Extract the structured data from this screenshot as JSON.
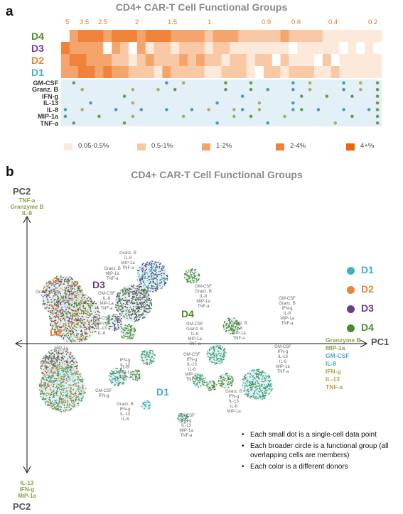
{
  "panel_a": {
    "letter": "a",
    "chart_data": {
      "type": "heatmap",
      "title": "CD4+ CAR-T Cell Functional Groups",
      "top_ticks": [
        "5",
        "3.5",
        "2.5",
        "2",
        "1.5",
        "1",
        "0.9",
        "0.6",
        "0.4",
        "0.2"
      ],
      "donors": [
        "D4",
        "D3",
        "D2",
        "D1"
      ],
      "donor_colors": [
        "#4b8a2e",
        "#7a3d96",
        "#e8853a",
        "#4fa8c9"
      ],
      "n_columns": 38,
      "levels": [
        "0,3,4,4,4,3,4,4,4,3,4,4,4,3,3,3,3,2,3,3,3,2,2,2,2,2,3,2,2,2,2,1,1,1,1,1,1,1",
        "4,3,3,3,3,0,3,2,0,3,1,2,2,1,2,2,2,1,2,2,1,1,1,1,1,1,1,0,1,1,1,1,1,0,1,0,1,0",
        "3,4,4,3,3,3,2,2,1,2,3,2,2,2,3,2,3,2,2,1,2,2,1,2,2,0,2,1,1,1,0,2,0,1,1,1,1,1",
        "3,3,4,4,3,4,3,3,2,2,2,1,3,2,2,2,2,1,1,2,2,2,1,0,2,2,1,2,2,2,1,1,2,1,1,1,1,1"
      ],
      "cytokines": [
        "GM-CSF",
        "Granz. B",
        "IFN-g",
        "IL-13",
        "IL-8",
        "MIP-1a",
        "TNF-a"
      ],
      "cytokine_dots": [
        [
          0,
          1,
          0,
          0,
          0,
          0,
          0,
          0,
          0,
          0,
          0,
          0,
          1,
          0,
          1,
          0,
          0,
          0,
          0,
          1,
          0,
          0,
          1,
          0,
          0,
          0,
          0,
          1,
          0,
          1,
          0,
          0,
          0,
          1,
          0,
          1,
          0,
          1
        ],
        [
          0,
          0,
          1,
          0,
          0,
          0,
          0,
          0,
          1,
          0,
          0,
          1,
          0,
          1,
          0,
          0,
          0,
          0,
          0,
          1,
          0,
          0,
          1,
          0,
          1,
          0,
          0,
          1,
          0,
          1,
          0,
          0,
          0,
          1,
          0,
          1,
          0,
          1
        ],
        [
          0,
          0,
          0,
          0,
          0,
          0,
          0,
          1,
          0,
          0,
          0,
          0,
          0,
          0,
          0,
          0,
          0,
          0,
          0,
          0,
          0,
          1,
          0,
          0,
          0,
          0,
          0,
          0,
          1,
          0,
          0,
          1,
          0,
          0,
          1,
          0,
          0,
          1
        ],
        [
          0,
          0,
          0,
          1,
          0,
          0,
          0,
          0,
          1,
          0,
          0,
          0,
          0,
          0,
          0,
          0,
          0,
          0,
          1,
          0,
          0,
          0,
          0,
          1,
          0,
          0,
          0,
          1,
          0,
          0,
          0,
          0,
          0,
          0,
          0,
          0,
          0,
          1
        ],
        [
          1,
          0,
          1,
          0,
          0,
          0,
          1,
          0,
          0,
          1,
          0,
          0,
          1,
          0,
          0,
          1,
          0,
          1,
          0,
          0,
          1,
          1,
          0,
          1,
          0,
          0,
          0,
          1,
          1,
          0,
          1,
          0,
          0,
          1,
          0,
          0,
          1,
          1
        ],
        [
          1,
          0,
          0,
          0,
          1,
          0,
          0,
          0,
          1,
          0,
          0,
          0,
          0,
          0,
          1,
          0,
          0,
          0,
          0,
          0,
          1,
          0,
          1,
          0,
          0,
          0,
          1,
          0,
          0,
          0,
          0,
          0,
          0,
          0,
          1,
          0,
          0,
          1
        ],
        [
          0,
          1,
          0,
          0,
          0,
          0,
          0,
          1,
          0,
          0,
          0,
          0,
          0,
          0,
          0,
          0,
          0,
          0,
          1,
          0,
          0,
          0,
          0,
          0,
          1,
          0,
          0,
          0,
          0,
          0,
          0,
          0,
          1,
          0,
          0,
          0,
          0,
          1
        ]
      ],
      "legend": [
        {
          "label": "0.05-0.5%",
          "color": "#fde9da"
        },
        {
          "label": "0.5-1%",
          "color": "#f9c9a6"
        },
        {
          "label": "1-2%",
          "color": "#f5a46c"
        },
        {
          "label": "2-4%",
          "color": "#f08239"
        },
        {
          "label": "4+%",
          "color": "#e8650e"
        }
      ]
    }
  },
  "panel_b": {
    "letter": "b",
    "chart_data": {
      "type": "scatter",
      "title": "CD4+ CAR-T Cell Functional Groups",
      "pc2_label": "PC2",
      "pc1_label": "PC1",
      "pc2_top": [
        "TNF-a",
        "Granzyme B",
        "IL-8"
      ],
      "pc2_bottom": [
        "IL-13",
        "IFN-g",
        "MIP-1a"
      ],
      "pc1_right": [
        "Granzyme B",
        "MIP-1a",
        "GM-CSF",
        "IL-8",
        "IFN-g",
        "IL-13",
        "TNF-a"
      ],
      "donor_legend": [
        {
          "label": "D1",
          "color": "#3fb3b5"
        },
        {
          "label": "D2",
          "color": "#e8853a"
        },
        {
          "label": "D3",
          "color": "#6a3d8a"
        },
        {
          "label": "D4",
          "color": "#4b8a2e"
        }
      ],
      "inline_donor_labels": [
        "D3",
        "D2",
        "D4",
        "D1"
      ],
      "group_labels": [
        "Granz. B\nIL-8\nMIP-1a\nTNF-a",
        "Granz. B\nMIP-1a\nTNF-a",
        "Granz. B",
        "GM-CSF\nGranz. B\nIL-8\nMIP-1a\nTNF-a",
        "GM-CSF\nIL-8\nMIP-1a\nTNF-a",
        "GM-CSF\nGranz. B\nIL-13\nTNF-a",
        "GM-CSF\nGranz. B\nIL-8\nMIP-1a\nTNF-a",
        "GM-CSF\nGranz. B\nIL-13\nIL-8",
        "GM-CSF\nGranz. B\nIFN-g\nIL-8\nMIP-1a\nTNF-a",
        "MIP-1a",
        "IFN-g\nGM-CSF",
        "IL-13",
        "IFN-g\nIL-13",
        "IL-8\nMIP-1a\nTNF-a",
        "GM-CSF\nIFN-g",
        "GM-CSF\nIFN-g\nIL-13\nIL-8\nMIP-1a\nTNF-a",
        "Granz. B\nIFN-g\nIL-13\nIL-8",
        "Granz. B\nIL-8\nMIP-1a\nTNF-a",
        "Granz. B\nIFN-g\nIL-13\nIL-8\nMIP-1a",
        "GM-CSF\nIFN-g\nIL-13\nIL-8\nMIP-1a\nTNF-a",
        "GM-CSF\nIFN-g\nIL-13\nMIP-1a\nTNF-a"
      ],
      "notes": [
        "Each small dot is a single-cell data point",
        "Each broader circle is a functional group (all overlapping cells are members)",
        "Each color is a different donors"
      ]
    }
  }
}
